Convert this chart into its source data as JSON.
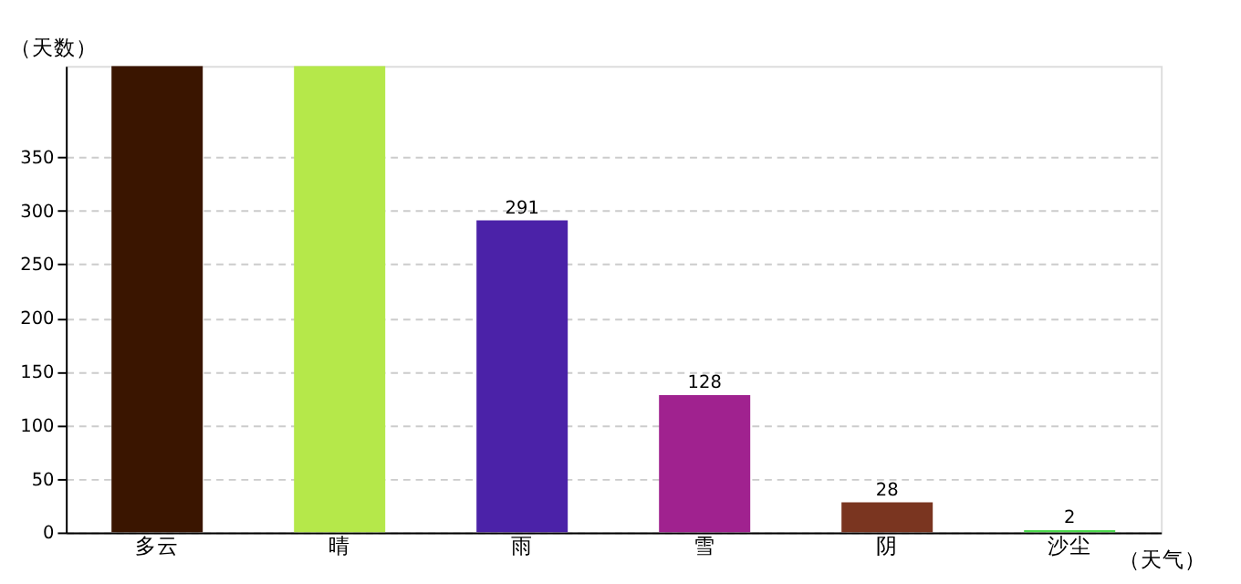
{
  "chart_data": {
    "type": "bar",
    "xlabel": "（天气）",
    "ylabel": "（天数）",
    "categories": [
      "多云",
      "晴",
      "雨",
      "雪",
      "阴",
      "沙尘"
    ],
    "values": [
      435,
      435,
      291,
      128,
      28,
      2
    ],
    "value_labels": [
      null,
      null,
      "291",
      "128",
      "28",
      "2"
    ],
    "colors": [
      "#3a1500",
      "#b5e84a",
      "#4b22a8",
      "#a0228f",
      "#7a3520",
      "#4cd84c"
    ],
    "ylim": [
      0,
      435
    ],
    "yticks": [
      0,
      50,
      100,
      150,
      200,
      250,
      300,
      350
    ],
    "grid": "y"
  }
}
